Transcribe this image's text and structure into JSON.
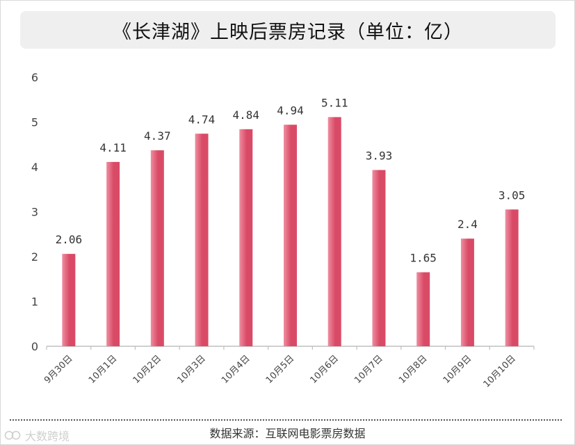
{
  "title": "《长津湖》上映后票房记录（单位：亿）",
  "source": "数据来源：互联网电影票房数据",
  "watermark": "大数跨境",
  "colors": {
    "bar": "#d94a66",
    "bar_light": "#ef8ea0",
    "axis": "#bfbfbf",
    "text": "#333333"
  },
  "chart_data": {
    "type": "bar",
    "categories": [
      "9月30日",
      "10月1日",
      "10月2日",
      "10月3日",
      "10月4日",
      "10月5日",
      "10月6日",
      "10月7日",
      "10月8日",
      "10月9日",
      "10月10日"
    ],
    "values": [
      2.06,
      4.11,
      4.37,
      4.74,
      4.84,
      4.94,
      5.11,
      3.93,
      1.65,
      2.4,
      3.05
    ],
    "value_labels": [
      "2.06",
      "4.11",
      "4.37",
      "4.74",
      "4.84",
      "4.94",
      "5.11",
      "3.93",
      "1.65",
      "2.4",
      "3.05"
    ],
    "y_ticks": [
      "0",
      "1",
      "2",
      "3",
      "4",
      "5",
      "6"
    ],
    "ylim": [
      0,
      6
    ],
    "grid": false,
    "legend": "none"
  }
}
